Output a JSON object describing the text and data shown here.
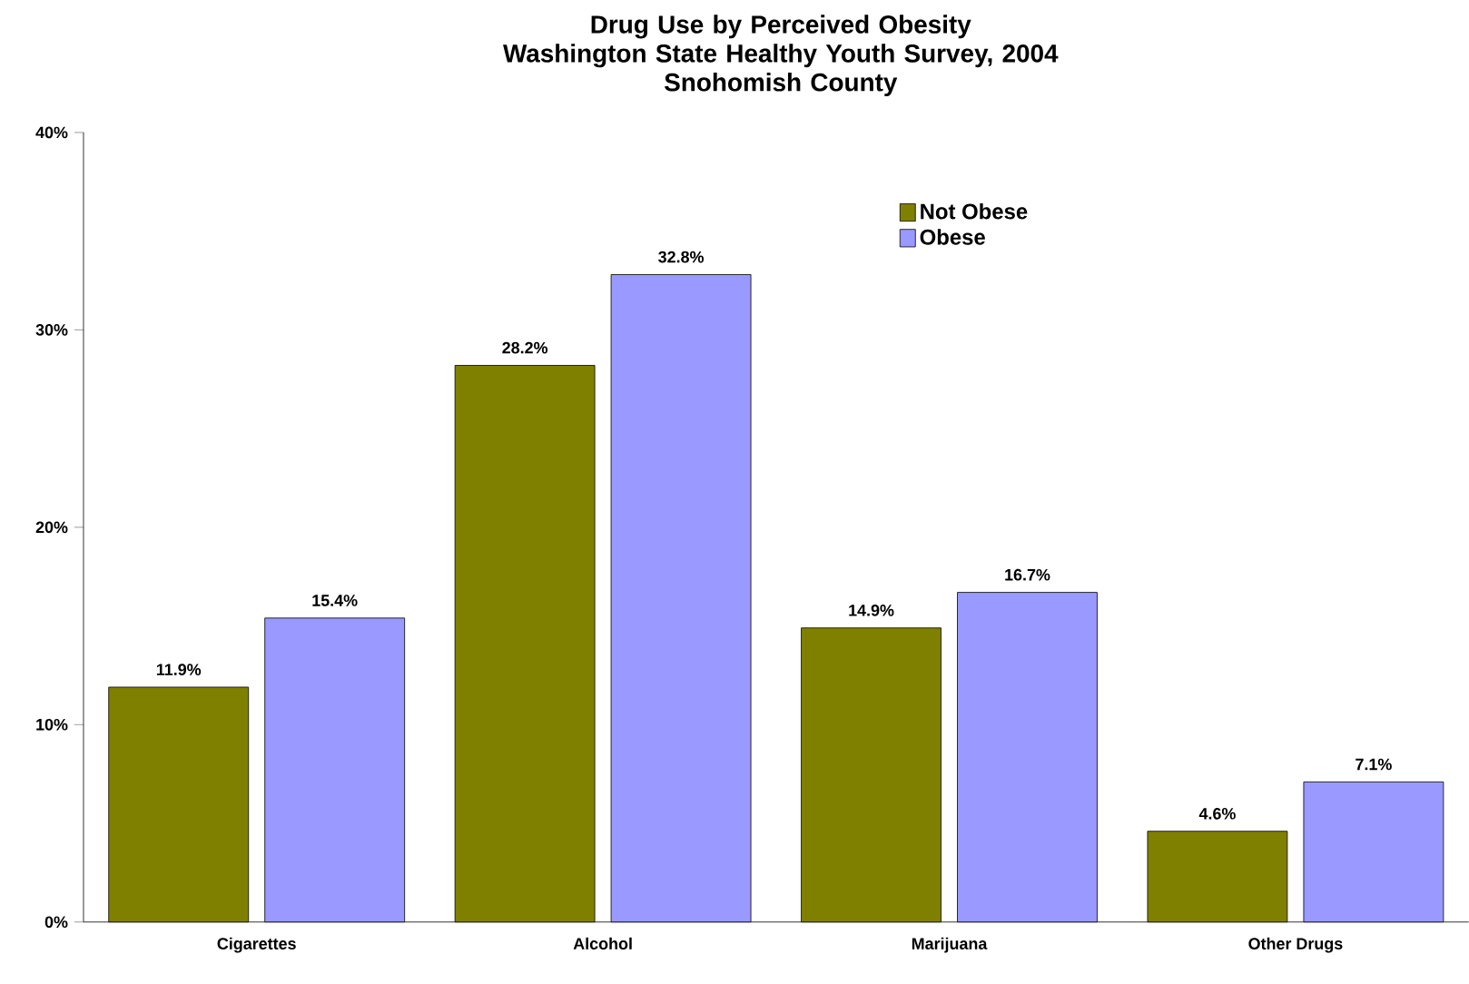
{
  "chart_data": {
    "type": "bar",
    "title": "Drug Use by Perceived Obesity\nWashington State Healthy Youth Survey, 2004\nSnohomish County",
    "categories": [
      "Cigarettes",
      "Alcohol",
      "Marijuana",
      "Other Drugs"
    ],
    "series": [
      {
        "name": "Not Obese",
        "color": "#808000",
        "values": [
          11.9,
          28.2,
          14.9,
          4.6
        ],
        "value_labels": [
          "11.9%",
          "28.2%",
          "14.9%",
          "4.6%"
        ]
      },
      {
        "name": "Obese",
        "color": "#9999ff",
        "values": [
          15.4,
          32.8,
          16.7,
          7.1
        ],
        "value_labels": [
          "15.4%",
          "32.8%",
          "16.7%",
          "7.1%"
        ]
      }
    ],
    "ylim": [
      0,
      40
    ],
    "yticks": [
      {
        "value": 0,
        "label": "0%"
      },
      {
        "value": 10,
        "label": "10%"
      },
      {
        "value": 20,
        "label": "20%"
      },
      {
        "value": 30,
        "label": "30%"
      },
      {
        "value": 40,
        "label": "40%"
      }
    ],
    "grid": false,
    "legend": "top right"
  }
}
